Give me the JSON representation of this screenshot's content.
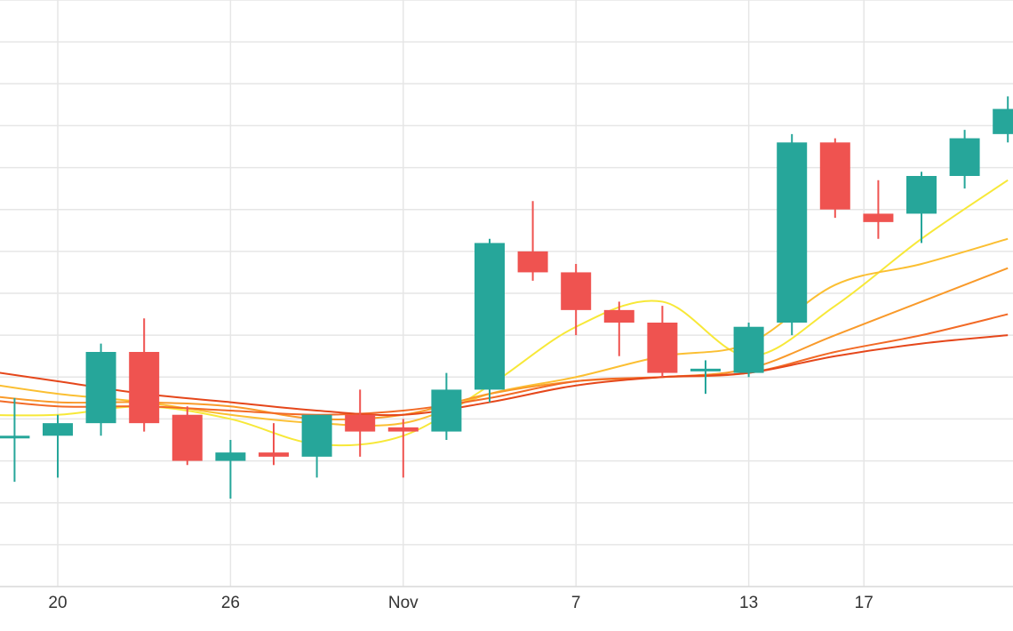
{
  "chart_data": {
    "type": "candlestick",
    "title": "",
    "xlabel": "",
    "ylabel": "",
    "grid": true,
    "x_ticks": [
      "20",
      "26",
      "Nov",
      "7",
      "13",
      "17"
    ],
    "x_tick_days": [
      20,
      26,
      32,
      38,
      44,
      48
    ],
    "ylim": [
      0,
      14
    ],
    "up_color": "#26a69a",
    "down_color": "#ef5350",
    "candles": [
      {
        "day": 18.5,
        "open": 3.6,
        "high": 4.5,
        "low": 2.5,
        "close": 3.6
      },
      {
        "day": 20.0,
        "open": 3.6,
        "high": 4.1,
        "low": 2.6,
        "close": 3.9
      },
      {
        "day": 21.5,
        "open": 3.9,
        "high": 5.8,
        "low": 3.6,
        "close": 5.6
      },
      {
        "day": 23.0,
        "open": 5.6,
        "high": 6.4,
        "low": 3.7,
        "close": 3.9
      },
      {
        "day": 24.5,
        "open": 4.1,
        "high": 4.3,
        "low": 2.9,
        "close": 3.0
      },
      {
        "day": 26.0,
        "open": 3.0,
        "high": 3.5,
        "low": 2.1,
        "close": 3.2
      },
      {
        "day": 27.5,
        "open": 3.2,
        "high": 3.9,
        "low": 2.9,
        "close": 3.1
      },
      {
        "day": 29.0,
        "open": 3.1,
        "high": 4.1,
        "low": 2.6,
        "close": 4.1
      },
      {
        "day": 30.5,
        "open": 4.1,
        "high": 4.7,
        "low": 3.1,
        "close": 3.7
      },
      {
        "day": 32.0,
        "open": 3.8,
        "high": 4.0,
        "low": 2.6,
        "close": 3.7
      },
      {
        "day": 33.5,
        "open": 3.7,
        "high": 5.1,
        "low": 3.5,
        "close": 4.7
      },
      {
        "day": 35.0,
        "open": 4.7,
        "high": 8.3,
        "low": 4.4,
        "close": 8.2
      },
      {
        "day": 36.5,
        "open": 8.0,
        "high": 9.2,
        "low": 7.3,
        "close": 7.5
      },
      {
        "day": 38.0,
        "open": 7.5,
        "high": 7.7,
        "low": 6.0,
        "close": 6.6
      },
      {
        "day": 39.5,
        "open": 6.6,
        "high": 6.8,
        "low": 5.5,
        "close": 6.3
      },
      {
        "day": 41.0,
        "open": 6.3,
        "high": 6.7,
        "low": 5.0,
        "close": 5.1
      },
      {
        "day": 42.5,
        "open": 5.2,
        "high": 5.4,
        "low": 4.6,
        "close": 5.2
      },
      {
        "day": 44.0,
        "open": 5.1,
        "high": 6.3,
        "low": 5.0,
        "close": 6.2
      },
      {
        "day": 45.5,
        "open": 6.3,
        "high": 10.8,
        "low": 6.0,
        "close": 10.6
      },
      {
        "day": 47.0,
        "open": 10.6,
        "high": 10.7,
        "low": 8.8,
        "close": 9.0
      },
      {
        "day": 48.5,
        "open": 8.9,
        "high": 9.7,
        "low": 8.3,
        "close": 8.7
      },
      {
        "day": 50.0,
        "open": 8.9,
        "high": 9.9,
        "low": 8.2,
        "close": 9.8
      },
      {
        "day": 51.5,
        "open": 9.8,
        "high": 10.9,
        "low": 9.5,
        "close": 10.7
      },
      {
        "day": 53.0,
        "open": 10.8,
        "high": 11.7,
        "low": 10.6,
        "close": 11.4
      }
    ],
    "series": [
      {
        "color": "#f7e838",
        "days": [
          17.0,
          20.0,
          23.0,
          26.0,
          29.0,
          32.0,
          35.0,
          38.0,
          41.0,
          44.0,
          47.0,
          50.0,
          53.0
        ],
        "values": [
          4.1,
          4.1,
          4.3,
          4.0,
          3.4,
          3.6,
          4.8,
          6.2,
          6.8,
          5.5,
          6.7,
          8.3,
          9.7
        ]
      },
      {
        "color": "#fbbf32",
        "days": [
          17.0,
          20.0,
          23.0,
          26.0,
          29.0,
          32.0,
          35.0,
          38.0,
          41.0,
          44.0,
          47.0,
          50.0,
          53.0
        ],
        "values": [
          4.9,
          4.6,
          4.4,
          4.1,
          3.9,
          3.9,
          4.6,
          5.0,
          5.5,
          5.8,
          7.2,
          7.7,
          8.3
        ]
      },
      {
        "color": "#f99a2a",
        "days": [
          17.0,
          20.0,
          23.0,
          26.0,
          29.0,
          32.0,
          35.0,
          38.0,
          41.0,
          44.0,
          47.0,
          50.0,
          53.0
        ],
        "values": [
          4.6,
          4.4,
          4.4,
          4.3,
          4.0,
          4.1,
          4.6,
          4.9,
          5.0,
          5.2,
          6.0,
          6.8,
          7.6
        ]
      },
      {
        "color": "#f26a26",
        "days": [
          17.0,
          20.0,
          23.0,
          26.0,
          29.0,
          32.0,
          35.0,
          38.0,
          41.0,
          44.0,
          47.0,
          50.0,
          53.0
        ],
        "values": [
          4.5,
          4.3,
          4.3,
          4.2,
          4.1,
          4.2,
          4.5,
          4.9,
          5.0,
          5.1,
          5.6,
          6.0,
          6.5
        ]
      },
      {
        "color": "#e5471b",
        "days": [
          17.0,
          20.0,
          23.0,
          26.0,
          29.0,
          32.0,
          35.0,
          38.0,
          41.0,
          44.0,
          47.0,
          50.0,
          53.0
        ],
        "values": [
          5.2,
          4.9,
          4.6,
          4.4,
          4.2,
          4.1,
          4.4,
          4.8,
          5.0,
          5.1,
          5.5,
          5.8,
          6.0
        ]
      }
    ]
  }
}
